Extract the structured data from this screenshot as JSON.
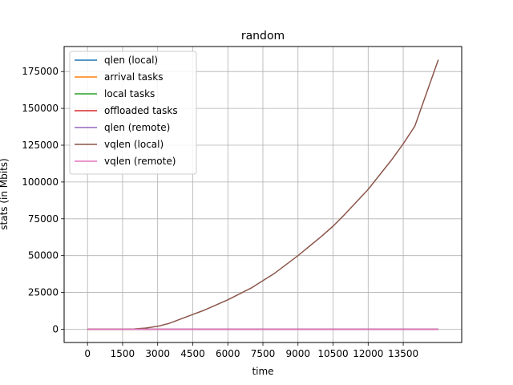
{
  "chart_data": {
    "type": "line",
    "title": "random",
    "xlabel": "time",
    "ylabel": "stats (in Mbits)",
    "xlim": [
      -1000,
      16000
    ],
    "ylim": [
      -9000,
      192000
    ],
    "xticks": [
      0,
      1500,
      3000,
      4500,
      6000,
      7500,
      9000,
      10500,
      12000,
      13500
    ],
    "xtick_labels": [
      "0",
      "1500",
      "3000",
      "4500",
      "6000",
      "7500",
      "9000",
      "10500",
      "12000",
      "13500"
    ],
    "yticks": [
      0,
      25000,
      50000,
      75000,
      100000,
      125000,
      150000,
      175000
    ],
    "ytick_labels": [
      "0",
      "25000",
      "50000",
      "75000",
      "100000",
      "125000",
      "150000",
      "175000"
    ],
    "grid": true,
    "legend_position": "top-left",
    "series": [
      {
        "name": "qlen (local)",
        "color": "#1f77b4",
        "x": [
          0,
          15000
        ],
        "y": [
          0,
          0
        ]
      },
      {
        "name": "arrival tasks",
        "color": "#ff7f0e",
        "x": [
          0,
          15000
        ],
        "y": [
          0,
          0
        ]
      },
      {
        "name": "local tasks",
        "color": "#2ca02c",
        "x": [
          0,
          15000
        ],
        "y": [
          0,
          0
        ]
      },
      {
        "name": "offloaded tasks",
        "color": "#d62728",
        "x": [
          0,
          15000
        ],
        "y": [
          0,
          0
        ]
      },
      {
        "name": "qlen (remote)",
        "color": "#9467bd",
        "x": [
          0,
          15000
        ],
        "y": [
          0,
          0
        ]
      },
      {
        "name": "vqlen (local)",
        "color": "#8c564b",
        "x": [
          0,
          1500,
          2000,
          2500,
          3000,
          3500,
          4000,
          4500,
          5000,
          6000,
          7000,
          7500,
          8000,
          9000,
          10000,
          10500,
          11000,
          12000,
          13000,
          13500,
          14000,
          15000
        ],
        "y": [
          0,
          0,
          200,
          800,
          2000,
          4000,
          7000,
          10000,
          13000,
          20000,
          28000,
          33000,
          38000,
          50000,
          63000,
          70000,
          78000,
          95000,
          115000,
          126000,
          138000,
          183000
        ]
      },
      {
        "name": "vqlen (remote)",
        "color": "#e377c2",
        "x": [
          0,
          15000
        ],
        "y": [
          0,
          0
        ]
      }
    ]
  }
}
